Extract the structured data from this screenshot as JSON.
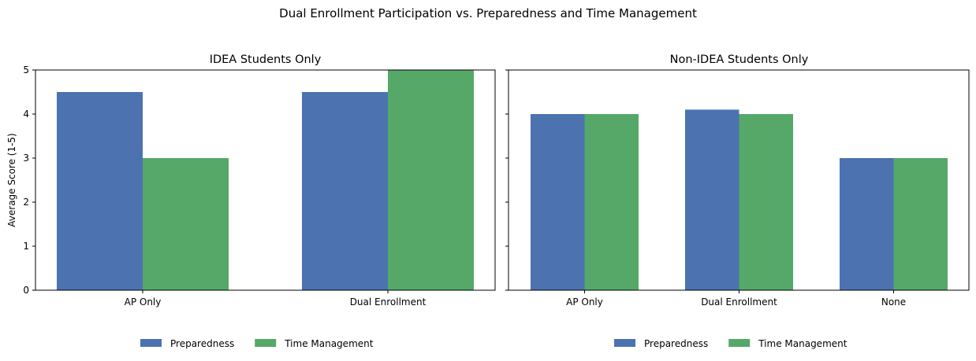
{
  "figure": {
    "title": "Dual Enrollment Participation vs. Preparedness and Time Management"
  },
  "chart_data": [
    {
      "type": "bar",
      "title": "IDEA Students Only",
      "xlabel": "",
      "ylabel": "Average Score (1-5)",
      "ylim": [
        0,
        5
      ],
      "yticks": [
        0,
        1,
        2,
        3,
        4,
        5
      ],
      "categories": [
        "AP Only",
        "Dual Enrollment"
      ],
      "series": [
        {
          "name": "Preparedness",
          "color": "#4c72b0",
          "values": [
            4.5,
            4.5
          ]
        },
        {
          "name": "Time Management",
          "color": "#55a868",
          "values": [
            3.0,
            5.0
          ]
        }
      ],
      "legend": "bottom-center",
      "grid": false
    },
    {
      "type": "bar",
      "title": "Non-IDEA Students Only",
      "xlabel": "",
      "ylabel": "",
      "ylim": [
        0,
        5
      ],
      "yticks": [
        0,
        1,
        2,
        3,
        4,
        5
      ],
      "categories": [
        "AP Only",
        "Dual Enrollment",
        "None"
      ],
      "series": [
        {
          "name": "Preparedness",
          "color": "#4c72b0",
          "values": [
            4.0,
            4.1,
            3.0
          ]
        },
        {
          "name": "Time Management",
          "color": "#55a868",
          "values": [
            4.0,
            4.0,
            3.0
          ]
        }
      ],
      "legend": "bottom-center",
      "grid": false
    }
  ]
}
